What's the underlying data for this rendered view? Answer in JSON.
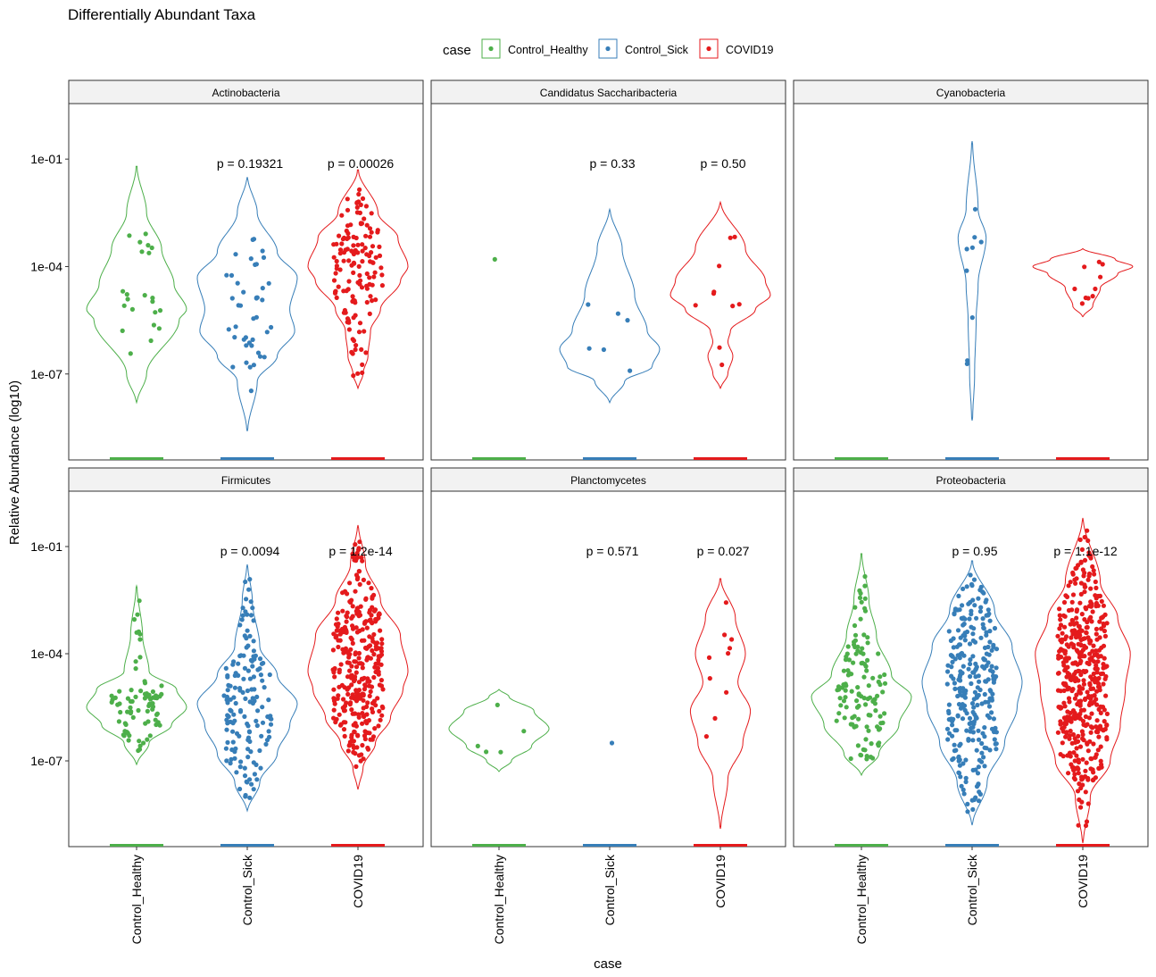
{
  "chart_data": {
    "type": "violin",
    "title": "Differentially Abundant Taxa",
    "xlabel": "case",
    "ylabel": "Relative Abundance (log10)",
    "y_scale": "log10",
    "y_ticks": [
      "1e-07",
      "1e-04",
      "1e-01"
    ],
    "y_tick_values": [
      -7,
      -4,
      -1
    ],
    "ylim_log10": [
      -9.4,
      0.55
    ],
    "categories": [
      "Control_Healthy",
      "Control_Sick",
      "COVID19"
    ],
    "legend": {
      "title": "case",
      "position": "top",
      "items": [
        {
          "label": "Control_Healthy",
          "color": "#4DAF4A"
        },
        {
          "label": "Control_Sick",
          "color": "#377EB8"
        },
        {
          "label": "COVID19",
          "color": "#E41A1C"
        }
      ]
    },
    "colors": {
      "Control_Healthy": "#4DAF4A",
      "Control_Sick": "#377EB8",
      "COVID19": "#E41A1C",
      "strip_bg": "#F2F2F2"
    },
    "panels": [
      {
        "name": "Actinobacteria",
        "p_values": {
          "Control_Sick": "p = 0.19321",
          "COVID19": "p = 0.00026"
        },
        "groups": [
          {
            "category": "Control_Healthy",
            "min_log10": -7.8,
            "max_log10": -1.2,
            "n_points": 22,
            "profile": [
              [
                -7.8,
                0.01
              ],
              [
                -7.0,
                0.2
              ],
              [
                -5.5,
                0.85
              ],
              [
                -5.2,
                1.0
              ],
              [
                -4.5,
                0.75
              ],
              [
                -3.5,
                0.5
              ],
              [
                -2.5,
                0.2
              ],
              [
                -1.2,
                0.01
              ]
            ]
          },
          {
            "category": "Control_Sick",
            "min_log10": -8.6,
            "max_log10": -1.5,
            "n_points": 42,
            "profile": [
              [
                -8.6,
                0.01
              ],
              [
                -7.2,
                0.2
              ],
              [
                -6.5,
                0.6
              ],
              [
                -5.8,
                0.95
              ],
              [
                -5.2,
                0.85
              ],
              [
                -4.3,
                1.0
              ],
              [
                -3.6,
                0.6
              ],
              [
                -2.5,
                0.2
              ],
              [
                -1.5,
                0.01
              ]
            ]
          },
          {
            "category": "COVID19",
            "min_log10": -7.4,
            "max_log10": -1.3,
            "n_points": 140,
            "profile": [
              [
                -7.4,
                0.01
              ],
              [
                -7.0,
                0.1
              ],
              [
                -6.5,
                0.2
              ],
              [
                -5.8,
                0.25
              ],
              [
                -5.2,
                0.45
              ],
              [
                -4.4,
                0.85
              ],
              [
                -4.0,
                1.0
              ],
              [
                -3.2,
                0.8
              ],
              [
                -2.5,
                0.4
              ],
              [
                -1.3,
                0.01
              ]
            ]
          }
        ]
      },
      {
        "name": "Candidatus Saccharibacteria",
        "p_values": {
          "Control_Sick": "p = 0.33",
          "COVID19": "p = 0.50"
        },
        "groups": [
          {
            "category": "Control_Healthy",
            "min_log10": -3.8,
            "max_log10": -3.8,
            "n_points": 1,
            "profile": []
          },
          {
            "category": "Control_Sick",
            "min_log10": -7.8,
            "max_log10": -2.4,
            "n_points": 6,
            "profile": [
              [
                -7.8,
                0.01
              ],
              [
                -7.2,
                0.3
              ],
              [
                -6.8,
                0.85
              ],
              [
                -6.3,
                1.0
              ],
              [
                -5.8,
                0.75
              ],
              [
                -4.8,
                0.5
              ],
              [
                -3.5,
                0.25
              ],
              [
                -2.4,
                0.01
              ]
            ]
          },
          {
            "category": "COVID19",
            "min_log10": -7.4,
            "max_log10": -2.2,
            "n_points": 10,
            "profile": [
              [
                -7.4,
                0.01
              ],
              [
                -7.0,
                0.15
              ],
              [
                -6.5,
                0.25
              ],
              [
                -6.1,
                0.15
              ],
              [
                -5.8,
                0.2
              ],
              [
                -5.2,
                0.7
              ],
              [
                -4.8,
                1.0
              ],
              [
                -4.4,
                0.9
              ],
              [
                -3.5,
                0.5
              ],
              [
                -2.2,
                0.01
              ]
            ]
          }
        ]
      },
      {
        "name": "Cyanobacteria",
        "p_values": {},
        "groups": [
          {
            "category": "Control_Healthy",
            "min_log10": null,
            "max_log10": null,
            "n_points": 0,
            "profile": []
          },
          {
            "category": "Control_Sick",
            "min_log10": -8.3,
            "max_log10": -0.5,
            "n_points": 9,
            "profile": [
              [
                -8.3,
                0.01
              ],
              [
                -7.0,
                0.05
              ],
              [
                -5.5,
                0.08
              ],
              [
                -4.5,
                0.12
              ],
              [
                -3.2,
                0.28
              ],
              [
                -2.4,
                0.12
              ],
              [
                -0.5,
                0.01
              ]
            ]
          },
          {
            "category": "COVID19",
            "min_log10": -5.4,
            "max_log10": -3.5,
            "n_points": 10,
            "profile": [
              [
                -5.4,
                0.01
              ],
              [
                -5.1,
                0.2
              ],
              [
                -4.6,
                0.35
              ],
              [
                -4.2,
                0.7
              ],
              [
                -4.0,
                1.0
              ],
              [
                -3.8,
                0.65
              ],
              [
                -3.5,
                0.01
              ]
            ]
          }
        ]
      },
      {
        "name": "Firmicutes",
        "p_values": {
          "Control_Sick": "p = 0.0094",
          "COVID19": "p = 1.2e-14"
        },
        "groups": [
          {
            "category": "Control_Healthy",
            "min_log10": -7.1,
            "max_log10": -2.1,
            "n_points": 80,
            "profile": [
              [
                -7.1,
                0.01
              ],
              [
                -6.5,
                0.25
              ],
              [
                -6.0,
                0.7
              ],
              [
                -5.5,
                1.0
              ],
              [
                -5.0,
                0.8
              ],
              [
                -4.5,
                0.25
              ],
              [
                -3.5,
                0.12
              ],
              [
                -2.1,
                0.01
              ]
            ]
          },
          {
            "category": "Control_Sick",
            "min_log10": -8.4,
            "max_log10": -1.5,
            "n_points": 150,
            "profile": [
              [
                -8.4,
                0.01
              ],
              [
                -7.6,
                0.25
              ],
              [
                -6.8,
                0.6
              ],
              [
                -6.0,
                0.85
              ],
              [
                -5.4,
                1.0
              ],
              [
                -4.6,
                0.6
              ],
              [
                -3.8,
                0.25
              ],
              [
                -2.5,
                0.1
              ],
              [
                -1.5,
                0.01
              ]
            ]
          },
          {
            "category": "COVID19",
            "min_log10": -7.8,
            "max_log10": -0.4,
            "n_points": 320,
            "profile": [
              [
                -7.8,
                0.01
              ],
              [
                -7.2,
                0.1
              ],
              [
                -6.5,
                0.35
              ],
              [
                -5.8,
                0.65
              ],
              [
                -5.0,
                0.9
              ],
              [
                -4.5,
                1.0
              ],
              [
                -3.5,
                0.85
              ],
              [
                -2.5,
                0.45
              ],
              [
                -1.5,
                0.15
              ],
              [
                -0.4,
                0.01
              ]
            ]
          }
        ]
      },
      {
        "name": "Planctomycetes",
        "p_values": {
          "Control_Sick": "p = 0.571",
          "COVID19": "p = 0.027"
        },
        "groups": [
          {
            "category": "Control_Healthy",
            "min_log10": -7.3,
            "max_log10": -5.0,
            "n_points": 5,
            "profile": [
              [
                -7.3,
                0.01
              ],
              [
                -7.0,
                0.25
              ],
              [
                -6.6,
                0.65
              ],
              [
                -6.1,
                1.0
              ],
              [
                -5.6,
                0.7
              ],
              [
                -5.2,
                0.2
              ],
              [
                -5.0,
                0.01
              ]
            ]
          },
          {
            "category": "Control_Sick",
            "min_log10": -6.5,
            "max_log10": -6.5,
            "n_points": 1,
            "profile": []
          },
          {
            "category": "COVID19",
            "min_log10": -8.9,
            "max_log10": -1.9,
            "n_points": 10,
            "profile": [
              [
                -8.9,
                0.01
              ],
              [
                -7.5,
                0.15
              ],
              [
                -6.5,
                0.45
              ],
              [
                -5.6,
                0.6
              ],
              [
                -4.8,
                0.35
              ],
              [
                -4.0,
                0.5
              ],
              [
                -3.0,
                0.3
              ],
              [
                -1.9,
                0.01
              ]
            ]
          }
        ]
      },
      {
        "name": "Proteobacteria",
        "p_values": {
          "Control_Sick": "p = 0.95",
          "COVID19": "p = 1.1e-12"
        },
        "groups": [
          {
            "category": "Control_Healthy",
            "min_log10": -7.4,
            "max_log10": -1.2,
            "n_points": 120,
            "profile": [
              [
                -7.4,
                0.01
              ],
              [
                -6.8,
                0.35
              ],
              [
                -6.0,
                0.75
              ],
              [
                -5.2,
                1.0
              ],
              [
                -4.6,
                0.6
              ],
              [
                -3.5,
                0.3
              ],
              [
                -2.5,
                0.15
              ],
              [
                -1.2,
                0.01
              ]
            ]
          },
          {
            "category": "Control_Sick",
            "min_log10": -8.8,
            "max_log10": -1.4,
            "n_points": 280,
            "profile": [
              [
                -8.8,
                0.01
              ],
              [
                -7.6,
                0.3
              ],
              [
                -6.5,
                0.65
              ],
              [
                -5.5,
                0.9
              ],
              [
                -4.8,
                1.0
              ],
              [
                -3.8,
                0.8
              ],
              [
                -2.8,
                0.45
              ],
              [
                -1.4,
                0.01
              ]
            ]
          },
          {
            "category": "COVID19",
            "min_log10": -9.3,
            "max_log10": -0.2,
            "n_points": 450,
            "profile": [
              [
                -9.3,
                0.01
              ],
              [
                -8.0,
                0.15
              ],
              [
                -7.0,
                0.55
              ],
              [
                -6.0,
                0.75
              ],
              [
                -5.0,
                0.85
              ],
              [
                -4.0,
                0.95
              ],
              [
                -3.0,
                0.7
              ],
              [
                -2.0,
                0.35
              ],
              [
                -0.2,
                0.01
              ]
            ]
          }
        ]
      }
    ]
  }
}
